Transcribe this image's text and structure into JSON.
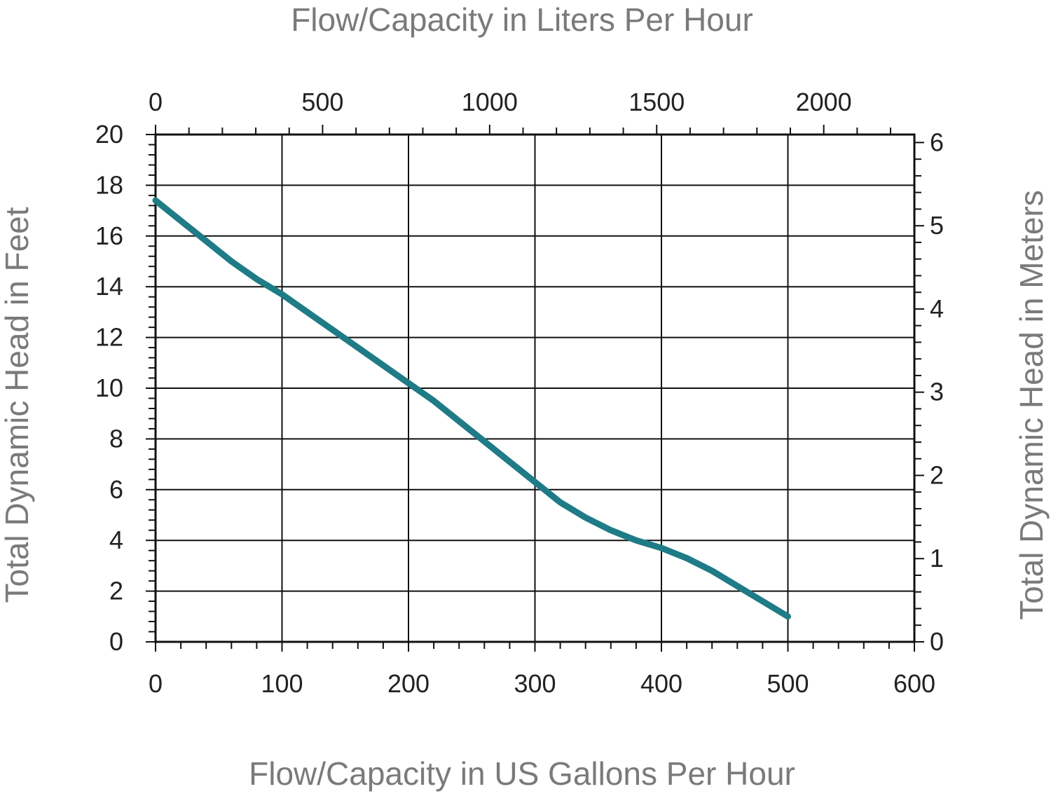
{
  "chart_data": {
    "type": "line",
    "x_axis": {
      "label": "Flow/Capacity in US Gallons Per Hour",
      "range": [
        0,
        600
      ],
      "major_ticks": [
        0,
        100,
        200,
        300,
        400,
        500,
        600
      ],
      "minor_step": 20,
      "grid": true
    },
    "x2_axis": {
      "label": "Flow/Capacity in Liters Per Hour",
      "position": "top",
      "range_in_primary_units": [
        0,
        600
      ],
      "conversion_from_primary": 3.78541,
      "major_ticks": [
        0,
        500,
        1000,
        1500,
        2000
      ],
      "minor_step": 100
    },
    "y_axis": {
      "label": "Total Dynamic Head in Feet",
      "range": [
        0,
        20
      ],
      "major_ticks": [
        0,
        2,
        4,
        6,
        8,
        10,
        12,
        14,
        16,
        18,
        20
      ],
      "minor_step": 0.4,
      "grid": true
    },
    "y2_axis": {
      "label": "Total Dynamic Head in Meters",
      "position": "right",
      "conversion_from_primary": 0.3048,
      "major_ticks": [
        0,
        1,
        2,
        3,
        4,
        5,
        6
      ],
      "minor_step": 0.2
    },
    "series": [
      {
        "color": "#1f7b86",
        "x": [
          0,
          20,
          40,
          60,
          80,
          100,
          120,
          140,
          160,
          180,
          200,
          220,
          240,
          260,
          280,
          300,
          320,
          340,
          360,
          380,
          400,
          420,
          440,
          460,
          480,
          500
        ],
        "y": [
          17.4,
          16.6,
          15.8,
          15.0,
          14.3,
          13.7,
          13.0,
          12.3,
          11.6,
          10.9,
          10.2,
          9.5,
          8.7,
          7.9,
          7.1,
          6.3,
          5.5,
          4.9,
          4.4,
          4.0,
          3.7,
          3.3,
          2.8,
          2.2,
          1.6,
          1.0
        ]
      }
    ]
  }
}
